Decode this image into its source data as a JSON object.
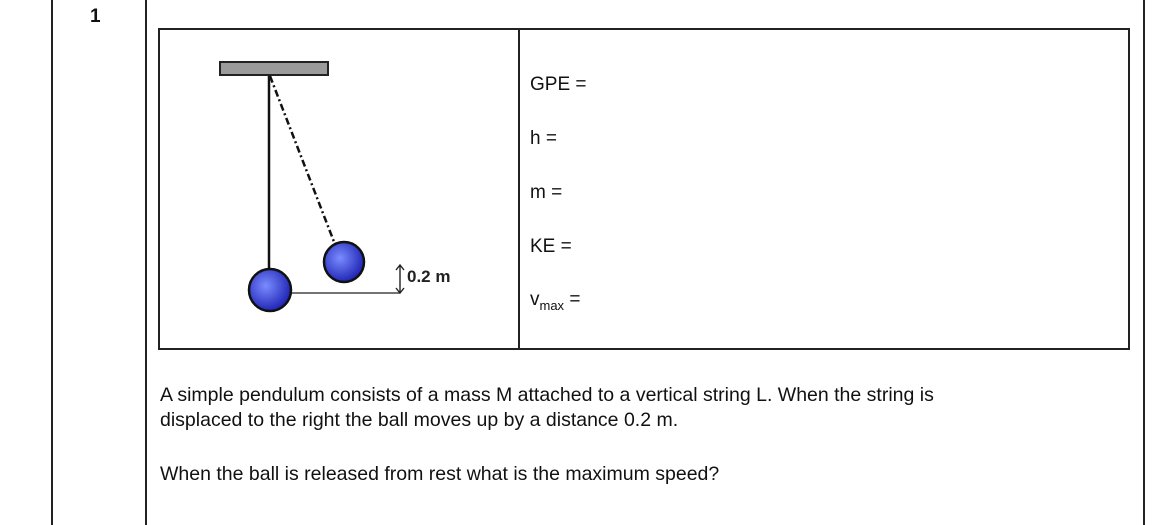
{
  "question": {
    "number": "1",
    "diagram": {
      "height_label": "0.2 m"
    },
    "formulas": {
      "gpe": "GPE =",
      "h": "h =",
      "m": "m =",
      "ke": "KE =",
      "vmax_symbol": "v",
      "vmax_sub": "max",
      "vmax_eq": "="
    },
    "paragraph1_line1": "A simple pendulum consists of a mass M attached to a vertical string L. When the string is",
    "paragraph1_line2": "displaced to the right the ball moves up by a distance 0.2 m.",
    "paragraph2": "When the ball is released from rest what is the maximum speed?"
  },
  "colors": {
    "ball_center": "#6f80ff",
    "ball_edge": "#1a1fb0",
    "support_fill": "#9b9b9b",
    "border": "#222222"
  }
}
